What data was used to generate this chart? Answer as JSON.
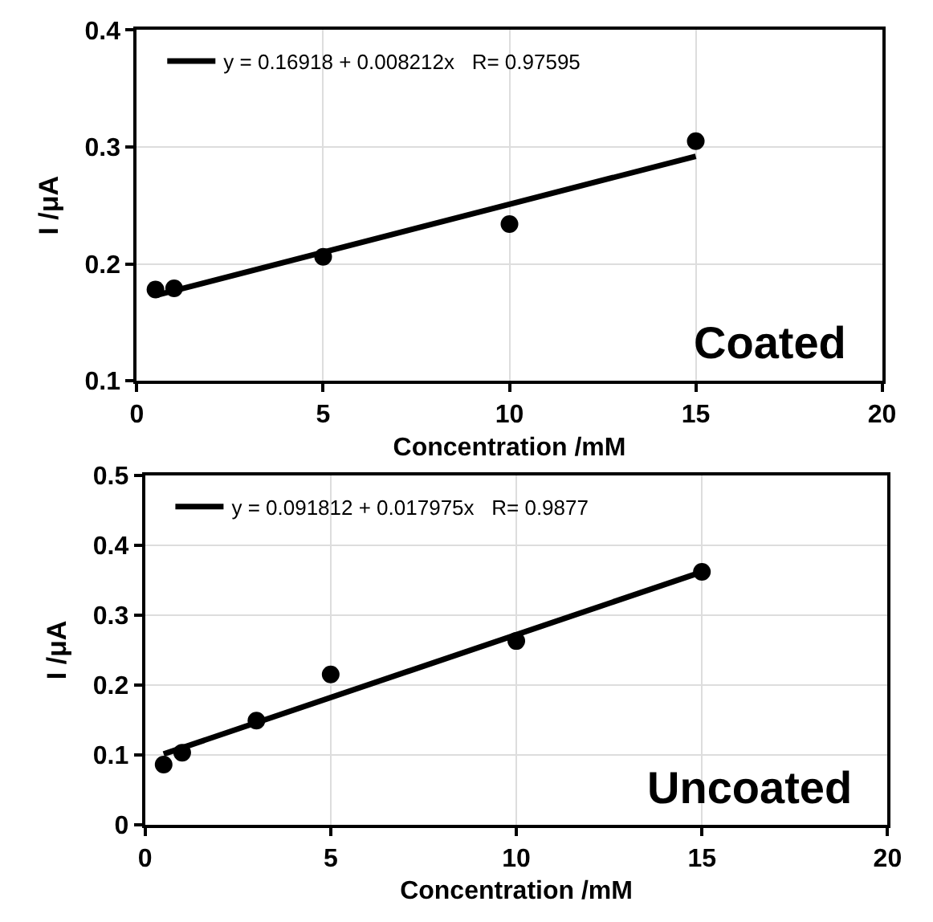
{
  "chart_data": [
    {
      "type": "scatter",
      "xlabel": "Concentration /mM",
      "ylabel": "I /μA",
      "annotations": [
        "Coated"
      ],
      "xlim": [
        0,
        20
      ],
      "xticks": [
        0,
        5,
        10,
        15,
        20
      ],
      "ylim": [
        0.1,
        0.4
      ],
      "yticks": [
        0.1,
        0.2,
        0.3,
        0.4
      ],
      "grid": true,
      "legend": "top left",
      "series": [
        {
          "x": [
            0.5,
            1,
            5,
            10,
            15
          ],
          "values": [
            0.178,
            0.179,
            0.206,
            0.234,
            0.305
          ],
          "color": "#000000",
          "marker": "circle"
        },
        {
          "type": "line",
          "name": "y = 0.16918 + 0.008212x   R= 0.97595",
          "x": [
            0.5,
            15
          ],
          "values": [
            0.173,
            0.292
          ],
          "color": "#000000",
          "line_style": "solid"
        }
      ]
    },
    {
      "type": "scatter",
      "xlabel": "Concentration /mM",
      "ylabel": "I /μA",
      "annotations": [
        "Uncoated"
      ],
      "xlim": [
        0,
        20
      ],
      "xticks": [
        0,
        5,
        10,
        15,
        20
      ],
      "ylim": [
        0,
        0.5
      ],
      "yticks": [
        0,
        0.1,
        0.2,
        0.3,
        0.4,
        0.5
      ],
      "grid": true,
      "legend": "top left",
      "series": [
        {
          "x": [
            0.5,
            1,
            3,
            5,
            10,
            15
          ],
          "values": [
            0.086,
            0.103,
            0.149,
            0.215,
            0.263,
            0.362
          ],
          "color": "#000000",
          "marker": "circle"
        },
        {
          "type": "line",
          "name": "y = 0.091812 + 0.017975x   R= 0.9877",
          "x": [
            0.5,
            15
          ],
          "values": [
            0.101,
            0.362
          ],
          "color": "#000000",
          "line_style": "solid"
        }
      ]
    }
  ]
}
